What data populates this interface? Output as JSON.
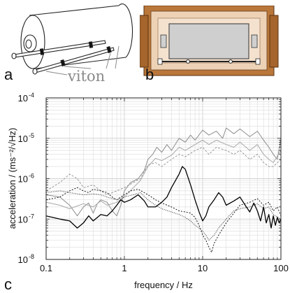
{
  "figure": {
    "panel_a": {
      "letter": "a",
      "callout": "viton"
    },
    "panel_b": {
      "letter": "b"
    },
    "panel_c": {
      "letter": "c"
    }
  },
  "chart_data": {
    "type": "line",
    "xscale": "log",
    "yscale": "log",
    "xlim": [
      0.1,
      100
    ],
    "ylim": [
      1e-08,
      0.0001
    ],
    "xlabel": "frequency / Hz",
    "ylabel": "acceleration / (ms⁻²/√Hz)",
    "x_ticks": [
      {
        "v": 0.1,
        "label": "0.1"
      },
      {
        "v": 1,
        "label": "1"
      },
      {
        "v": 10,
        "label": "10"
      },
      {
        "v": 100,
        "label": "100"
      }
    ],
    "y_ticks": [
      {
        "v": 1e-08,
        "m": "10",
        "e": "-8"
      },
      {
        "v": 1e-07,
        "m": "10",
        "e": "-7"
      },
      {
        "v": 1e-06,
        "m": "10",
        "e": "-6"
      },
      {
        "v": 1e-05,
        "m": "10",
        "e": "-5"
      },
      {
        "v": 0.0001,
        "m": "10",
        "e": "-4"
      }
    ],
    "grid": true,
    "series": [
      {
        "color": "#8c8c8c",
        "dash": "",
        "points": [
          [
            0.1,
            4e-07
          ],
          [
            0.15,
            3.5e-07
          ],
          [
            0.2,
            2.2e-07
          ],
          [
            0.25,
            1.2e-07
          ],
          [
            0.3,
            2e-07
          ],
          [
            0.35,
            2.5e-07
          ],
          [
            0.4,
            1.4e-07
          ],
          [
            0.45,
            2.4e-07
          ],
          [
            0.5,
            3e-07
          ],
          [
            0.6,
            2.6e-07
          ],
          [
            0.7,
            1.6e-07
          ],
          [
            0.8,
            1.2e-07
          ],
          [
            0.9,
            2.2e-07
          ],
          [
            1.0,
            5e-07
          ],
          [
            1.2,
            8e-07
          ],
          [
            1.5,
            1e-06
          ],
          [
            1.8,
            1.6e-06
          ],
          [
            2.0,
            3e-06
          ],
          [
            2.3,
            4e-06
          ],
          [
            2.6,
            6e-06
          ],
          [
            3.0,
            4.5e-06
          ],
          [
            3.5,
            7e-06
          ],
          [
            4.0,
            5e-06
          ],
          [
            5.0,
            1e-05
          ],
          [
            6.0,
            8e-06
          ],
          [
            7.0,
            1.2e-05
          ],
          [
            8.0,
            9e-06
          ],
          [
            10.0,
            1.6e-05
          ],
          [
            12.0,
            1.2e-05
          ],
          [
            15.0,
            1.5e-05
          ],
          [
            18.0,
            1e-05
          ],
          [
            20.0,
            1.8e-05
          ],
          [
            25.0,
            1.3e-05
          ],
          [
            30.0,
            1.7e-05
          ],
          [
            40.0,
            1.1e-05
          ],
          [
            50.0,
            1.5e-05
          ],
          [
            60.0,
            9e-06
          ],
          [
            70.0,
            6e-06
          ],
          [
            80.0,
            4e-06
          ],
          [
            90.0,
            3e-06
          ],
          [
            100.0,
            1e-05
          ]
        ]
      },
      {
        "color": "#a8a8a8",
        "dash": "",
        "points": [
          [
            0.1,
            2.6e-07
          ],
          [
            0.15,
            2.2e-07
          ],
          [
            0.2,
            1.8e-07
          ],
          [
            0.3,
            2.4e-07
          ],
          [
            0.4,
            2e-07
          ],
          [
            0.5,
            2.8e-07
          ],
          [
            0.6,
            2.2e-07
          ],
          [
            0.8,
            2.6e-07
          ],
          [
            1.0,
            3.5e-07
          ],
          [
            1.3,
            6e-07
          ],
          [
            1.6,
            9e-07
          ],
          [
            2.0,
            2e-06
          ],
          [
            2.5,
            3.2e-06
          ],
          [
            3.0,
            2.8e-06
          ],
          [
            4.0,
            3.8e-06
          ],
          [
            5.0,
            6e-06
          ],
          [
            6.0,
            5e-06
          ],
          [
            8.0,
            7e-06
          ],
          [
            10.0,
            9e-06
          ],
          [
            12.0,
            7e-06
          ],
          [
            15.0,
            9e-06
          ],
          [
            20.0,
            7e-06
          ],
          [
            25.0,
            6e-06
          ],
          [
            30.0,
            8e-06
          ],
          [
            40.0,
            5e-06
          ],
          [
            50.0,
            7e-06
          ],
          [
            60.0,
            4e-06
          ],
          [
            70.0,
            3e-06
          ],
          [
            80.0,
            2.5e-06
          ],
          [
            100.0,
            5e-06
          ]
        ]
      },
      {
        "color": "#9a9a9a",
        "dash": "3,2",
        "points": [
          [
            0.1,
            5e-07
          ],
          [
            0.15,
            8e-07
          ],
          [
            0.2,
            1.3e-06
          ],
          [
            0.25,
            1e-06
          ],
          [
            0.3,
            6e-07
          ],
          [
            0.4,
            7e-07
          ],
          [
            0.5,
            5e-07
          ],
          [
            0.6,
            4e-07
          ],
          [
            0.8,
            5e-07
          ],
          [
            1.0,
            6e-07
          ],
          [
            1.3,
            8e-07
          ],
          [
            1.6,
            1e-06
          ],
          [
            2.0,
            2.2e-06
          ],
          [
            2.5,
            2.5e-06
          ],
          [
            3.0,
            2e-06
          ],
          [
            4.0,
            3e-06
          ],
          [
            5.0,
            4e-06
          ],
          [
            6.0,
            3.5e-06
          ],
          [
            8.0,
            5e-06
          ],
          [
            10.0,
            6e-06
          ],
          [
            12.0,
            4e-06
          ],
          [
            15.0,
            6e-06
          ],
          [
            20.0,
            5e-06
          ],
          [
            25.0,
            4e-06
          ],
          [
            30.0,
            5e-06
          ],
          [
            40.0,
            3e-06
          ],
          [
            50.0,
            4e-06
          ],
          [
            60.0,
            2.5e-06
          ],
          [
            70.0,
            2e-06
          ],
          [
            80.0,
            2e-06
          ],
          [
            100.0,
            3e-06
          ]
        ]
      },
      {
        "color": "#000000",
        "dash": "",
        "points": [
          [
            0.1,
            1.2e-07
          ],
          [
            0.15,
            1e-07
          ],
          [
            0.2,
            9e-08
          ],
          [
            0.25,
            6e-08
          ],
          [
            0.3,
            8e-08
          ],
          [
            0.35,
            1.2e-07
          ],
          [
            0.4,
            9e-08
          ],
          [
            0.5,
            1.3e-07
          ],
          [
            0.6,
            1.2e-07
          ],
          [
            0.7,
            1.6e-07
          ],
          [
            0.8,
            2.2e-07
          ],
          [
            0.9,
            3e-07
          ],
          [
            1.0,
            2.6e-07
          ],
          [
            1.2,
            3e-07
          ],
          [
            1.5,
            4e-07
          ],
          [
            1.8,
            2.8e-07
          ],
          [
            2.0,
            2e-07
          ],
          [
            2.5,
            2e-07
          ],
          [
            3.0,
            2.6e-07
          ],
          [
            3.5,
            3.5e-07
          ],
          [
            4.0,
            6e-07
          ],
          [
            5.0,
            1.3e-06
          ],
          [
            5.5,
            2e-06
          ],
          [
            6.0,
            1.7e-06
          ],
          [
            7.0,
            7e-07
          ],
          [
            8.0,
            3e-07
          ],
          [
            9.0,
            1.5e-07
          ],
          [
            10.0,
            9e-08
          ],
          [
            11.0,
            1.2e-07
          ],
          [
            12.0,
            2e-07
          ],
          [
            14.0,
            3e-07
          ],
          [
            16.0,
            4.5e-07
          ],
          [
            18.0,
            3.5e-07
          ],
          [
            20.0,
            2.2e-07
          ],
          [
            25.0,
            2.8e-07
          ],
          [
            30.0,
            3.5e-07
          ],
          [
            35.0,
            2.2e-07
          ],
          [
            40.0,
            1.5e-07
          ],
          [
            45.0,
            2.5e-07
          ],
          [
            50.0,
            1.6e-07
          ],
          [
            55.0,
            9e-08
          ],
          [
            60.0,
            2e-07
          ],
          [
            65.0,
            8e-08
          ],
          [
            70.0,
            1.3e-07
          ],
          [
            75.0,
            6e-08
          ],
          [
            80.0,
            1.2e-07
          ],
          [
            85.0,
            7e-08
          ],
          [
            90.0,
            1.1e-07
          ],
          [
            95.0,
            8e-08
          ],
          [
            100.0,
            1e-07
          ]
        ]
      },
      {
        "color": "#1a1a1a",
        "dash": "2,2",
        "points": [
          [
            0.1,
            3e-07
          ],
          [
            0.15,
            3.5e-07
          ],
          [
            0.2,
            5e-07
          ],
          [
            0.25,
            6e-07
          ],
          [
            0.3,
            5e-07
          ],
          [
            0.35,
            4.5e-07
          ],
          [
            0.4,
            5.5e-07
          ],
          [
            0.5,
            5e-07
          ],
          [
            0.6,
            4.5e-07
          ],
          [
            0.7,
            3.5e-07
          ],
          [
            0.8,
            3e-07
          ],
          [
            1.0,
            4e-07
          ],
          [
            1.2,
            5e-07
          ],
          [
            1.5,
            5.5e-07
          ],
          [
            2.0,
            4e-07
          ],
          [
            2.5,
            3e-07
          ],
          [
            3.0,
            2.5e-07
          ],
          [
            4.0,
            2e-07
          ],
          [
            5.0,
            1.6e-07
          ],
          [
            6.0,
            1.5e-07
          ],
          [
            7.0,
            1.4e-07
          ],
          [
            8.0,
            1.1e-07
          ],
          [
            9.0,
            7e-08
          ],
          [
            10.0,
            4e-08
          ],
          [
            11.0,
            3e-08
          ],
          [
            12.0,
            2e-08
          ],
          [
            13.0,
            1.5e-08
          ],
          [
            14.0,
            2.5e-08
          ],
          [
            16.0,
            4e-08
          ],
          [
            20.0,
            8e-08
          ],
          [
            25.0,
            1.4e-07
          ],
          [
            30.0,
            2.2e-07
          ],
          [
            40.0,
            2.6e-07
          ],
          [
            50.0,
            3.2e-07
          ],
          [
            60.0,
            2.2e-07
          ],
          [
            70.0,
            2.6e-07
          ],
          [
            80.0,
            1.6e-07
          ],
          [
            90.0,
            2e-07
          ],
          [
            100.0,
            1.2e-07
          ]
        ]
      },
      {
        "color": "#2a2a2a",
        "dash": "1,1.5",
        "points": [
          [
            0.1,
            4.5e-07
          ],
          [
            0.15,
            5e-07
          ],
          [
            0.2,
            4.5e-07
          ],
          [
            0.3,
            4e-07
          ],
          [
            0.4,
            4.2e-07
          ],
          [
            0.5,
            4e-07
          ],
          [
            0.6,
            3.5e-07
          ],
          [
            0.8,
            3e-07
          ],
          [
            1.0,
            3.5e-07
          ],
          [
            1.3,
            4e-07
          ],
          [
            1.6,
            4.5e-07
          ],
          [
            2.0,
            3e-07
          ],
          [
            2.5,
            2.2e-07
          ],
          [
            3.0,
            1.8e-07
          ],
          [
            4.0,
            1.5e-07
          ],
          [
            5.0,
            1.3e-07
          ],
          [
            6.0,
            1.1e-07
          ],
          [
            7.0,
            9e-08
          ],
          [
            8.0,
            7e-08
          ],
          [
            9.0,
            6e-08
          ],
          [
            10.0,
            5e-08
          ],
          [
            11.0,
            4e-08
          ],
          [
            12.0,
            3e-08
          ],
          [
            14.0,
            4e-08
          ],
          [
            16.0,
            6e-08
          ],
          [
            20.0,
            1e-07
          ],
          [
            25.0,
            1.6e-07
          ],
          [
            30.0,
            1.8e-07
          ],
          [
            40.0,
            2e-07
          ],
          [
            50.0,
            2.4e-07
          ],
          [
            60.0,
            1.8e-07
          ],
          [
            70.0,
            2e-07
          ],
          [
            80.0,
            1.3e-07
          ],
          [
            100.0,
            1e-07
          ]
        ]
      }
    ]
  }
}
